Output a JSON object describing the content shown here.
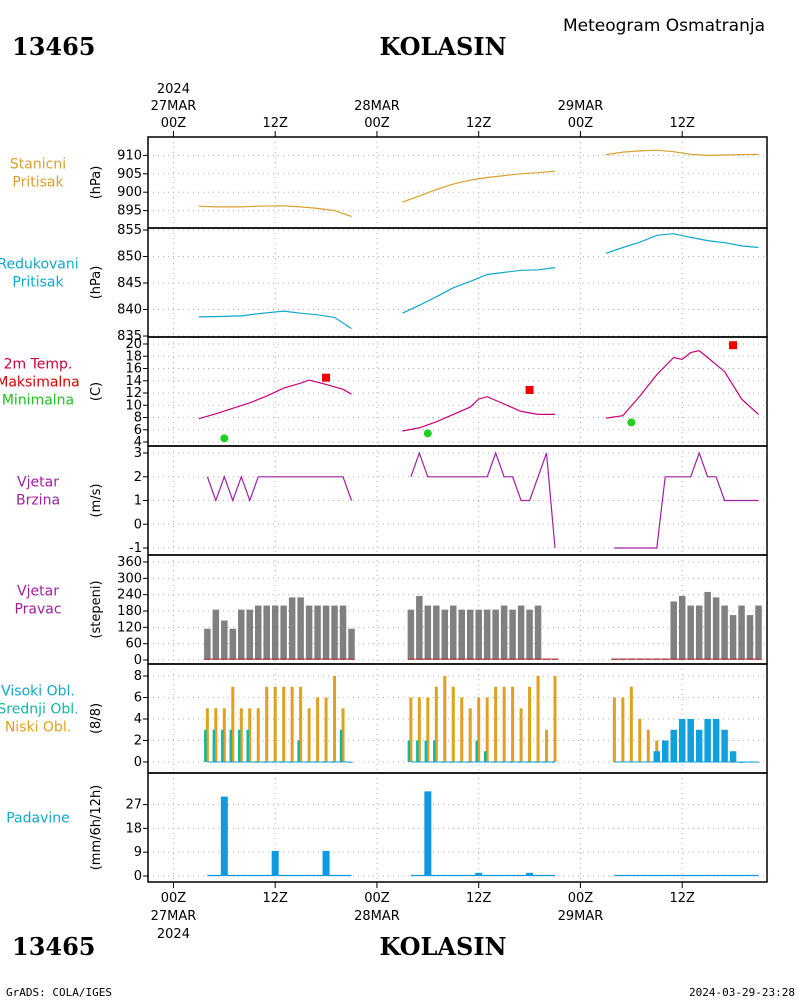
{
  "header": {
    "station_id": "13465",
    "station_name": "KOLASIN",
    "product": "Meteogram Osmatranja"
  },
  "time_axis": {
    "top_year": "2024",
    "bottom_year": "2024",
    "ticks": [
      {
        "label": "00Z",
        "date": "27MAR",
        "hours": 0
      },
      {
        "label": "12Z",
        "date": "",
        "hours": 12
      },
      {
        "label": "00Z",
        "date": "28MAR",
        "hours": 24
      },
      {
        "label": "12Z",
        "date": "",
        "hours": 36
      },
      {
        "label": "00Z",
        "date": "29MAR",
        "hours": 48
      },
      {
        "label": "12Z",
        "date": "",
        "hours": 60
      }
    ],
    "x_start": -3,
    "x_end": 70
  },
  "panels": [
    {
      "id": "stn-pressure",
      "labels": [
        "Stanicni",
        "Pritisak"
      ],
      "label_colors": [
        "#d8a030",
        "#d8a030"
      ],
      "unit": "(hPa)",
      "ymin": 893,
      "ymax": 912,
      "ticks": [
        "895",
        "900",
        "905",
        "910"
      ]
    },
    {
      "id": "red-pressure",
      "labels": [
        "Redukovani",
        "Pritisak"
      ],
      "label_colors": [
        "#10a8c8",
        "#10a8c8"
      ],
      "unit": "(hPa)",
      "ymin": 835,
      "ymax": 855,
      "ticks": [
        "835",
        "840",
        "845",
        "850",
        "855"
      ]
    },
    {
      "id": "temperature",
      "labels": [
        "2m Temp.",
        "Maksimalna",
        "Minimalna"
      ],
      "label_colors": [
        "#c8003c",
        "#d80000",
        "#20c020"
      ],
      "unit": "(C)",
      "ymin": 4,
      "ymax": 20,
      "ticks": [
        "4",
        "6",
        "8",
        "10",
        "12",
        "14",
        "16",
        "18",
        "20"
      ]
    },
    {
      "id": "wind-speed",
      "labels": [
        "Vjetar",
        "Brzina"
      ],
      "label_colors": [
        "#a020a0",
        "#a020a0"
      ],
      "unit": "(m/s)",
      "ymin": -1,
      "ymax": 3,
      "ticks": [
        "-1",
        "0",
        "1",
        "2",
        "3"
      ]
    },
    {
      "id": "wind-dir",
      "labels": [
        "Vjetar",
        "Pravac"
      ],
      "label_colors": [
        "#a020a0",
        "#a020a0"
      ],
      "unit": "(stepeni)",
      "ymin": 0,
      "ymax": 360,
      "ticks": [
        "0",
        "60",
        "120",
        "180",
        "240",
        "300",
        "360"
      ]
    },
    {
      "id": "clouds",
      "labels": [
        "Visoki Obl.",
        "Srednji Obl.",
        "Niski Obl."
      ],
      "label_colors": [
        "#10a8c8",
        "#10b8a0",
        "#e0a020"
      ],
      "unit": "(8/8)",
      "ymin": 0,
      "ymax": 8,
      "ticks": [
        "0",
        "2",
        "4",
        "6",
        "8"
      ]
    },
    {
      "id": "precip",
      "labels": [
        "Padavine"
      ],
      "label_colors": [
        "#10a8c8"
      ],
      "unit": "(mm/6h/12h)",
      "ymin": 0,
      "ymax": 31,
      "ticks": [
        "0",
        "9",
        "18",
        "27"
      ]
    }
  ],
  "footer": {
    "left": "GrADS: COLA/IGES",
    "right": "2024-03-29-23:28"
  },
  "chart_data": {
    "type": "line",
    "title": "13465 KOLASIN",
    "subtitle": "Meteogram Osmatranja",
    "x_units": "hours since 27MAR 00Z",
    "station_pressure": {
      "color": "#d8a030",
      "segments": [
        [
          [
            3,
            896.2
          ],
          [
            5,
            896.0
          ],
          [
            8,
            896.0
          ],
          [
            10,
            896.2
          ],
          [
            13,
            896.3
          ],
          [
            15,
            896.0
          ],
          [
            17,
            895.6
          ],
          [
            19,
            895.0
          ],
          [
            21,
            893.4
          ]
        ],
        [
          [
            27,
            897.3
          ],
          [
            29,
            899.0
          ],
          [
            31,
            900.7
          ],
          [
            33,
            902.2
          ],
          [
            35,
            903.3
          ],
          [
            37,
            904.0
          ],
          [
            39,
            904.5
          ],
          [
            41,
            905.0
          ],
          [
            43,
            905.3
          ],
          [
            45,
            905.7
          ]
        ],
        [
          [
            51,
            910.2
          ],
          [
            53,
            910.9
          ],
          [
            55,
            911.2
          ],
          [
            57,
            911.4
          ],
          [
            59,
            911.0
          ],
          [
            61,
            910.3
          ],
          [
            63,
            910.0
          ],
          [
            65,
            910.1
          ],
          [
            67,
            910.2
          ],
          [
            69,
            910.3
          ]
        ]
      ]
    },
    "reduced_pressure": {
      "color": "#10a8c8",
      "segments": [
        [
          [
            3,
            838.6
          ],
          [
            6,
            838.7
          ],
          [
            8,
            838.8
          ],
          [
            10,
            839.2
          ],
          [
            13,
            839.7
          ],
          [
            15,
            839.3
          ],
          [
            17,
            839.0
          ],
          [
            19,
            838.5
          ],
          [
            21,
            836.4
          ]
        ],
        [
          [
            27,
            839.3
          ],
          [
            29,
            840.8
          ],
          [
            31,
            842.4
          ],
          [
            33,
            844.1
          ],
          [
            35,
            845.3
          ],
          [
            37,
            846.6
          ],
          [
            39,
            847.0
          ],
          [
            41,
            847.4
          ],
          [
            43,
            847.5
          ],
          [
            45,
            847.9
          ]
        ],
        [
          [
            51,
            850.6
          ],
          [
            53,
            851.7
          ],
          [
            55,
            852.7
          ],
          [
            57,
            854.0
          ],
          [
            59,
            854.3
          ],
          [
            61,
            853.6
          ],
          [
            63,
            853.0
          ],
          [
            65,
            852.6
          ],
          [
            67,
            852.0
          ],
          [
            69,
            851.7
          ]
        ]
      ]
    },
    "temperature_2m": {
      "color": "#c8007a",
      "segments": [
        [
          [
            3,
            7.8
          ],
          [
            5,
            8.6
          ],
          [
            7,
            9.5
          ],
          [
            9,
            10.4
          ],
          [
            11,
            11.5
          ],
          [
            13,
            12.8
          ],
          [
            15,
            13.6
          ],
          [
            16,
            14.1
          ],
          [
            18,
            13.4
          ],
          [
            20,
            12.6
          ],
          [
            21,
            11.8
          ]
        ],
        [
          [
            27,
            5.8
          ],
          [
            29,
            6.3
          ],
          [
            31,
            7.3
          ],
          [
            33,
            8.5
          ],
          [
            35,
            9.7
          ],
          [
            36,
            11.0
          ],
          [
            37,
            11.4
          ],
          [
            39,
            10.2
          ],
          [
            41,
            9.0
          ],
          [
            43,
            8.5
          ],
          [
            45,
            8.5
          ]
        ],
        [
          [
            51,
            7.9
          ],
          [
            53,
            8.3
          ],
          [
            55,
            11.5
          ],
          [
            57,
            15.0
          ],
          [
            59,
            17.8
          ],
          [
            60,
            17.5
          ],
          [
            61,
            18.6
          ],
          [
            62,
            18.9
          ],
          [
            63,
            17.8
          ],
          [
            65,
            15.5
          ],
          [
            67,
            11.0
          ],
          [
            69,
            8.5
          ]
        ]
      ]
    },
    "temperature_max": {
      "color": "#ee0000",
      "points": [
        [
          18,
          14.5
        ],
        [
          42,
          12.5
        ],
        [
          66,
          19.8
        ]
      ]
    },
    "temperature_min": {
      "color": "#20d020",
      "points": [
        [
          6,
          4.6
        ],
        [
          30,
          5.4
        ],
        [
          54,
          7.2
        ]
      ]
    },
    "wind_speed": {
      "color": "#a020a0",
      "segments": [
        [
          [
            4,
            2
          ],
          [
            5,
            1
          ],
          [
            6,
            2
          ],
          [
            7,
            1
          ],
          [
            8,
            2
          ],
          [
            9,
            1
          ],
          [
            10,
            2
          ],
          [
            20,
            2
          ],
          [
            21,
            1
          ]
        ],
        [
          [
            28,
            2
          ],
          [
            29,
            3
          ],
          [
            30,
            2
          ],
          [
            35,
            2
          ],
          [
            37,
            2
          ],
          [
            38,
            3
          ],
          [
            39,
            2
          ],
          [
            40,
            2
          ],
          [
            41,
            1
          ],
          [
            42,
            1
          ],
          [
            43,
            2
          ],
          [
            44,
            3
          ],
          [
            45,
            -1
          ]
        ],
        [
          [
            52,
            -1
          ],
          [
            57,
            -1
          ],
          [
            58,
            2
          ],
          [
            61,
            2
          ],
          [
            62,
            3
          ],
          [
            63,
            2
          ],
          [
            64,
            2
          ],
          [
            65,
            1
          ],
          [
            69,
            1
          ]
        ]
      ]
    },
    "wind_direction": {
      "color": "#808080",
      "x": [
        4,
        5,
        6,
        7,
        8,
        9,
        10,
        11,
        12,
        13,
        14,
        15,
        16,
        17,
        18,
        19,
        20,
        21,
        28,
        29,
        30,
        31,
        32,
        33,
        34,
        35,
        36,
        37,
        38,
        39,
        40,
        41,
        42,
        43,
        44,
        45,
        52,
        53,
        54,
        55,
        56,
        57,
        58,
        59,
        60,
        61,
        62,
        63,
        64,
        65,
        66,
        67,
        68,
        69
      ],
      "values": [
        115,
        185,
        145,
        115,
        185,
        185,
        200,
        200,
        200,
        200,
        230,
        230,
        200,
        200,
        200,
        200,
        200,
        115,
        185,
        235,
        200,
        200,
        185,
        200,
        185,
        185,
        185,
        185,
        185,
        200,
        185,
        200,
        185,
        200,
        5,
        5,
        5,
        5,
        5,
        5,
        5,
        5,
        5,
        215,
        235,
        200,
        200,
        250,
        230,
        200,
        165,
        200,
        165,
        200
      ]
    },
    "clouds_low": {
      "color": "#e0a020",
      "x": [
        4,
        5,
        6,
        7,
        8,
        9,
        10,
        11,
        12,
        13,
        14,
        15,
        16,
        17,
        18,
        19,
        20,
        21,
        28,
        29,
        30,
        31,
        32,
        33,
        34,
        35,
        36,
        37,
        38,
        39,
        40,
        41,
        42,
        43,
        44,
        45,
        52,
        53,
        54,
        55,
        56,
        57,
        58,
        59,
        60,
        61,
        62,
        63,
        64,
        65,
        66,
        67,
        68,
        69
      ],
      "values": [
        5,
        5,
        5,
        7,
        5,
        5,
        5,
        7,
        7,
        7,
        7,
        7,
        5,
        6,
        6,
        8,
        5,
        0,
        6,
        6,
        6,
        7,
        8,
        7,
        6,
        5,
        6,
        6,
        7,
        7,
        7,
        5,
        7,
        8,
        3,
        8,
        6,
        6,
        7,
        4,
        3,
        2,
        2,
        1,
        3,
        3,
        2,
        3,
        3,
        2,
        0,
        0,
        0,
        0
      ]
    },
    "clouds_mid": {
      "color": "#10b8a0",
      "x": [
        4,
        5,
        6,
        7,
        8,
        9,
        10,
        11,
        12,
        13,
        14,
        15,
        16,
        17,
        18,
        19,
        20,
        21,
        28,
        29,
        30,
        31,
        32,
        33,
        34,
        35,
        36,
        37,
        38,
        39,
        40,
        41,
        42,
        43,
        44,
        45
      ],
      "values": [
        3,
        3,
        3,
        3,
        3,
        3,
        0,
        0,
        0,
        0,
        0,
        2,
        0,
        0,
        0,
        0,
        3,
        0,
        2,
        2,
        2,
        2,
        0,
        0,
        0,
        0,
        2,
        1,
        0,
        0,
        0,
        0,
        0,
        0,
        0,
        0
      ]
    },
    "clouds_high": {
      "color": "#10a0e0",
      "x": [
        57,
        58,
        59,
        60,
        61,
        62,
        63,
        64,
        65,
        66,
        67
      ],
      "values": [
        1,
        2,
        3,
        4,
        4,
        3,
        4,
        4,
        3,
        1,
        0
      ]
    },
    "precipitation": {
      "color": "#1098e0",
      "x": [
        6,
        12,
        18,
        30,
        36,
        42
      ],
      "values": [
        30,
        9.5,
        9.5,
        32,
        1.2,
        1.2
      ]
    }
  }
}
